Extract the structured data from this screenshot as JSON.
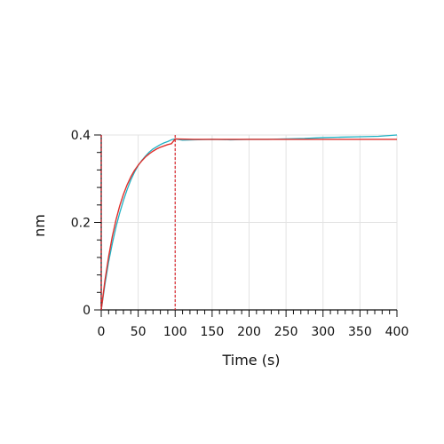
{
  "chart_data": {
    "type": "line",
    "title": "",
    "xlabel": "Time (s)",
    "ylabel": "nm",
    "xlim": [
      0,
      400
    ],
    "ylim": [
      0,
      0.4
    ],
    "x_ticks": [
      0,
      50,
      100,
      150,
      200,
      250,
      300,
      350,
      400
    ],
    "x_tick_labels": [
      "0",
      "50",
      "100",
      "150",
      "200",
      "250",
      "300",
      "350",
      "400"
    ],
    "y_ticks": [
      0,
      0.2,
      0.4
    ],
    "y_tick_labels": [
      "0",
      "0.2",
      "0.4"
    ],
    "grid": true,
    "markers": [
      {
        "x": 0,
        "color": "#c0121b"
      },
      {
        "x": 100,
        "color": "#d9232a"
      }
    ],
    "series": [
      {
        "role": "measured",
        "color": "#1fb2c4",
        "x": [
          0,
          5,
          10,
          15,
          20,
          25,
          30,
          35,
          40,
          45,
          50,
          55,
          60,
          65,
          70,
          75,
          80,
          85,
          90,
          95,
          100,
          110,
          125,
          150,
          175,
          200,
          225,
          250,
          275,
          300,
          325,
          350,
          375,
          400
        ],
        "y": [
          0.0,
          0.058,
          0.11,
          0.152,
          0.19,
          0.222,
          0.25,
          0.275,
          0.297,
          0.315,
          0.33,
          0.342,
          0.352,
          0.361,
          0.368,
          0.373,
          0.378,
          0.382,
          0.385,
          0.389,
          0.391,
          0.388,
          0.389,
          0.39,
          0.389,
          0.39,
          0.39,
          0.391,
          0.392,
          0.394,
          0.395,
          0.396,
          0.397,
          0.4
        ]
      },
      {
        "role": "fit",
        "color": "#e0302c",
        "x": [
          0,
          5,
          10,
          15,
          20,
          25,
          30,
          35,
          40,
          45,
          50,
          55,
          60,
          65,
          70,
          75,
          80,
          85,
          90,
          95,
          100,
          125,
          150,
          200,
          250,
          300,
          350,
          400
        ],
        "y": [
          0.0,
          0.067,
          0.122,
          0.168,
          0.206,
          0.238,
          0.264,
          0.286,
          0.304,
          0.319,
          0.331,
          0.341,
          0.35,
          0.357,
          0.363,
          0.368,
          0.372,
          0.375,
          0.378,
          0.38,
          0.391,
          0.39,
          0.39,
          0.39,
          0.39,
          0.39,
          0.39,
          0.39
        ]
      }
    ]
  }
}
